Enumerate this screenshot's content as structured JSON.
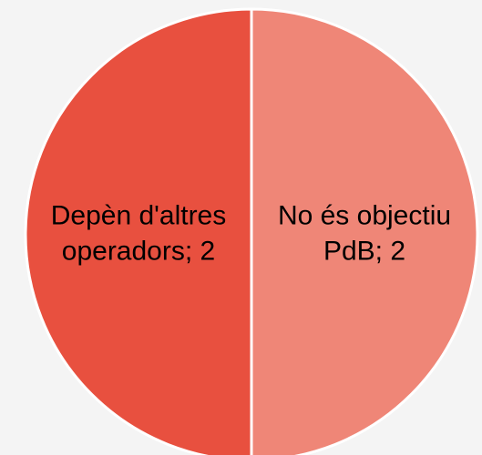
{
  "chart_data": {
    "type": "pie",
    "values": [
      2,
      2
    ],
    "value_labels": [
      "No és objectiu PdB; 2",
      "Depèn d'altres operadors; 2"
    ],
    "colors": [
      "#ef8677",
      "#e8503f"
    ]
  }
}
